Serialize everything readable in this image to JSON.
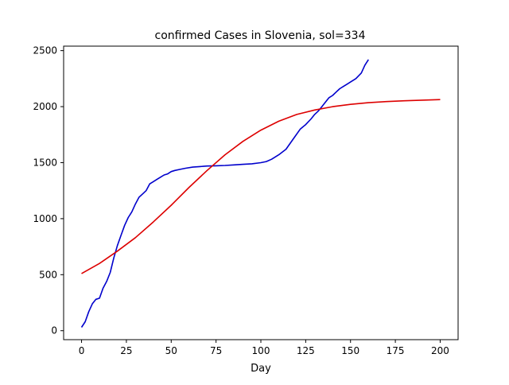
{
  "chart_data": {
    "type": "line",
    "title": "confirmed Cases in Slovenia, sol=334",
    "xlabel": "Day",
    "ylabel": "",
    "xlim": [
      -10,
      210
    ],
    "ylim": [
      -80,
      2540
    ],
    "xticks": [
      0,
      25,
      50,
      75,
      100,
      125,
      150,
      175,
      200
    ],
    "yticks": [
      0,
      500,
      1000,
      1500,
      2000,
      2500
    ],
    "grid": false,
    "series": [
      {
        "color": "#0000cc",
        "x": [
          0,
          2,
          4,
          6,
          8,
          10,
          12,
          14,
          16,
          18,
          20,
          22,
          24,
          26,
          28,
          30,
          32,
          34,
          36,
          38,
          40,
          42,
          44,
          46,
          48,
          50,
          52,
          55,
          58,
          62,
          66,
          70,
          75,
          80,
          85,
          90,
          95,
          100,
          103,
          106,
          110,
          114,
          118,
          122,
          125,
          128,
          130,
          132,
          134,
          136,
          138,
          140,
          142,
          144,
          146,
          148,
          150,
          153,
          156,
          158,
          160
        ],
        "y": [
          30,
          80,
          170,
          240,
          280,
          290,
          380,
          440,
          520,
          650,
          760,
          850,
          940,
          1010,
          1060,
          1130,
          1190,
          1220,
          1250,
          1310,
          1330,
          1350,
          1370,
          1390,
          1400,
          1420,
          1430,
          1440,
          1450,
          1460,
          1465,
          1470,
          1472,
          1475,
          1480,
          1485,
          1490,
          1500,
          1510,
          1530,
          1570,
          1620,
          1710,
          1800,
          1840,
          1890,
          1930,
          1960,
          2000,
          2040,
          2080,
          2100,
          2130,
          2160,
          2180,
          2200,
          2220,
          2250,
          2300,
          2370,
          2420
        ]
      },
      {
        "color": "#dd0000",
        "x": [
          0,
          10,
          20,
          30,
          40,
          50,
          60,
          70,
          80,
          90,
          100,
          110,
          120,
          130,
          140,
          150,
          160,
          170,
          180,
          190,
          200
        ],
        "y": [
          510,
          600,
          710,
          830,
          970,
          1120,
          1280,
          1430,
          1570,
          1690,
          1790,
          1870,
          1930,
          1970,
          2000,
          2020,
          2035,
          2045,
          2052,
          2058,
          2063
        ]
      }
    ]
  }
}
